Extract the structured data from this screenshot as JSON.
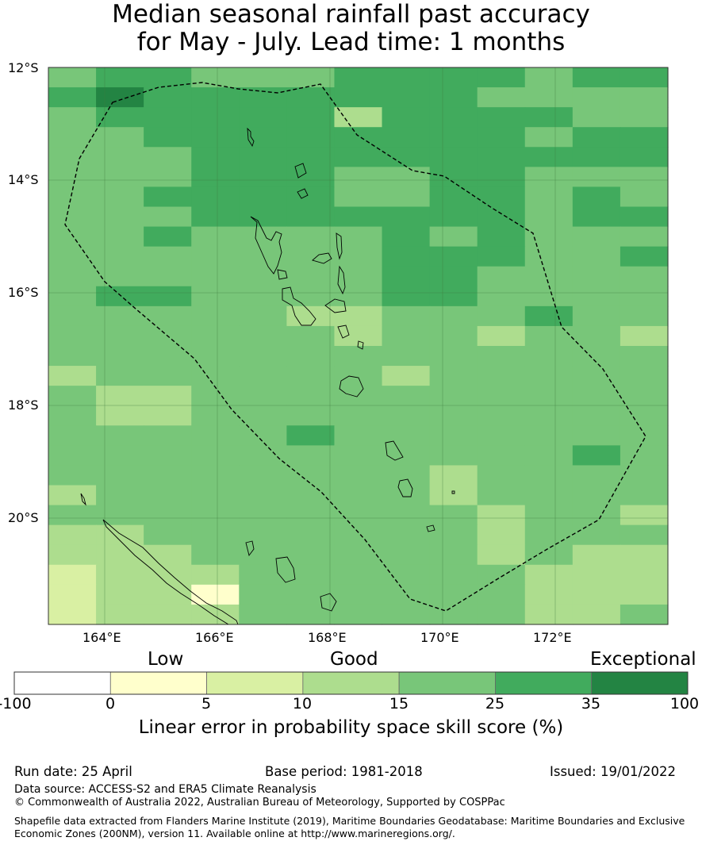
{
  "title_line1": "Median seasonal rainfall past accuracy",
  "title_line2": "for May - July. Lead time: 1 months",
  "lat_labels": [
    "12°S",
    "14°S",
    "16°S",
    "18°S",
    "20°S"
  ],
  "lon_labels": [
    "164°E",
    "166°E",
    "168°E",
    "170°E",
    "172°E"
  ],
  "colorbar": {
    "category_low": "Low",
    "category_good": "Good",
    "category_exceptional": "Exceptional",
    "ticks": [
      "-100",
      "0",
      "5",
      "10",
      "15",
      "25",
      "35",
      "100"
    ],
    "colors": [
      "#ffffff",
      "#ffffcc",
      "#d9f0a3",
      "#addd8e",
      "#78c679",
      "#41ab5d",
      "#238443"
    ],
    "label": "Linear error in probability space skill score (%)"
  },
  "footer": {
    "run_date": "Run date: 25 April",
    "base_period": "Base period: 1981-2018",
    "issued": "Issued: 19/01/2022",
    "data_source": "Data source: ACCESS-S2 and ERA5 Climate Reanalysis",
    "copyright": "© Commonwealth of Australia 2022, Australian Bureau of Meteorology, Supported by COSPPac",
    "shapefile": "Shapefile data extracted from Flanders Marine Institute (2019), Maritime Boundaries Geodatabase: Maritime Boundaries and Exclusive Economic Zones (200NM), version 11. Available online at http://www.marineregions.org/."
  },
  "map_grid": {
    "legend_index_meaning": "0:<0, 1:0-5, 2:5-10, 3:10-15, 4:15-25, 5:25-35, 6:35-100",
    "rows": [
      "4554445555455",
      "5655555554444",
      "4555553555544",
      "4455555555455",
      "4445555555555",
      "4445554455444",
      "4455554455454",
      "4445555555455",
      "4454444545444",
      "4444444555445",
      "4444444554444",
      "4554444554444",
      "4444433444544",
      "4444443443443",
      "4444444444444",
      "3444444344444",
      "4334444444444",
      "4334444444444",
      "4444454444444",
      "4444444444454",
      "4444444434444",
      "3444444434444",
      "4444444443443",
      "3344444443444",
      "3334444443433",
      "2333444444333",
      "2331444444333",
      "2333444444334"
    ]
  }
}
